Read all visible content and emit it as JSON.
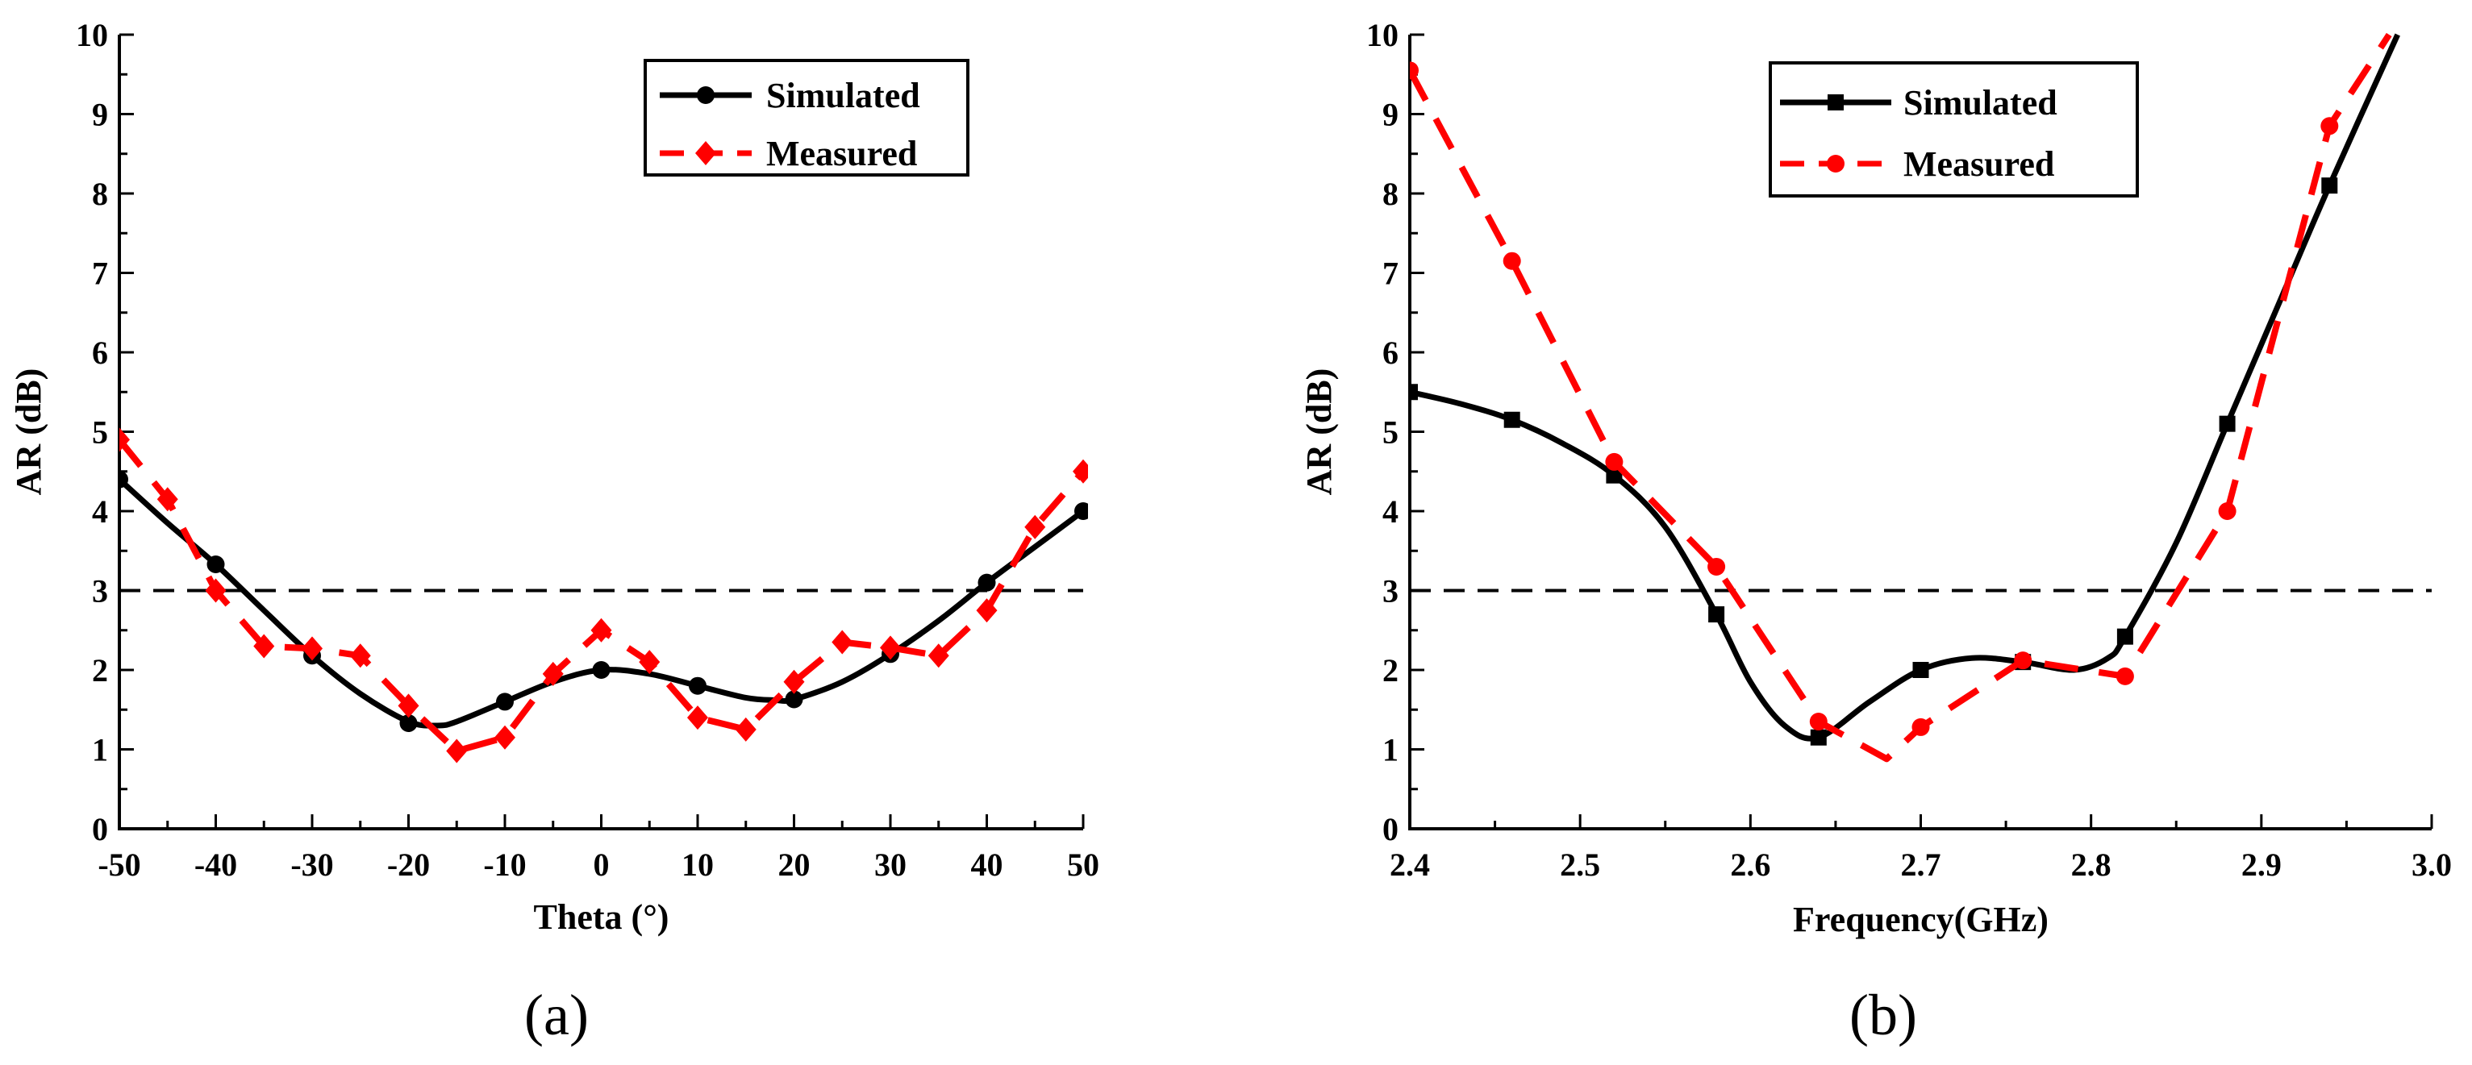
{
  "chart_data": [
    {
      "type": "line",
      "caption": "(a)",
      "xlabel": "Theta (°)",
      "ylabel": "AR (dB)",
      "xlim": [
        -50,
        50
      ],
      "ylim": [
        0,
        10
      ],
      "xticks": [
        -50,
        -40,
        -30,
        -20,
        -10,
        0,
        10,
        20,
        30,
        40,
        50
      ],
      "xtick_labels": [
        "-50",
        "-40",
        "-30",
        "-20",
        "-10",
        "0",
        "10",
        "20",
        "30",
        "40",
        "50"
      ],
      "yticks": [
        0,
        1,
        2,
        3,
        4,
        5,
        6,
        7,
        8,
        9,
        10
      ],
      "ytick_labels": [
        "0",
        "1",
        "2",
        "3",
        "4",
        "5",
        "6",
        "7",
        "8",
        "9",
        "10"
      ],
      "reference_line": 3,
      "legend_position": "top-right",
      "series": [
        {
          "name": "Simulated",
          "color": "#000000",
          "style": "solid",
          "marker": "circle",
          "x": [
            -50,
            -40,
            -30,
            -20,
            -10,
            0,
            10,
            20,
            30,
            40,
            50
          ],
          "values": [
            4.4,
            3.33,
            2.18,
            1.33,
            1.6,
            2.0,
            1.8,
            1.63,
            2.2,
            3.1,
            4.0
          ],
          "curve_x": [
            -50,
            -45,
            -40,
            -35,
            -30,
            -25,
            -20,
            -17,
            -15,
            -10,
            -5,
            0,
            5,
            10,
            15,
            18,
            20,
            25,
            30,
            35,
            40,
            45,
            50
          ],
          "curve_y": [
            4.4,
            3.85,
            3.33,
            2.75,
            2.18,
            1.7,
            1.35,
            1.3,
            1.35,
            1.6,
            1.85,
            2.0,
            1.95,
            1.8,
            1.65,
            1.62,
            1.63,
            1.85,
            2.2,
            2.62,
            3.1,
            3.55,
            4.0
          ]
        },
        {
          "name": "Measured",
          "color": "#ff0000",
          "style": "dashed",
          "marker": "diamond",
          "x": [
            -50,
            -45,
            -40,
            -35,
            -30,
            -25,
            -20,
            -15,
            -10,
            -5,
            0,
            5,
            10,
            15,
            20,
            25,
            30,
            35,
            40,
            45,
            50
          ],
          "values": [
            4.9,
            4.15,
            3.0,
            2.3,
            2.27,
            2.18,
            1.55,
            0.98,
            1.15,
            1.95,
            2.5,
            2.1,
            1.4,
            1.25,
            1.85,
            2.35,
            2.28,
            2.18,
            2.75,
            3.8,
            4.5
          ]
        }
      ]
    },
    {
      "type": "line",
      "caption": "(b)",
      "xlabel": "Frequency(GHz)",
      "ylabel": "AR (dB)",
      "xlim": [
        2.4,
        3.0
      ],
      "ylim": [
        0,
        10
      ],
      "xticks": [
        2.4,
        2.5,
        2.6,
        2.7,
        2.8,
        2.9,
        3.0
      ],
      "xtick_labels": [
        "2.4",
        "2.5",
        "2.6",
        "2.7",
        "2.8",
        "2.9",
        "3.0"
      ],
      "yticks": [
        0,
        1,
        2,
        3,
        4,
        5,
        6,
        7,
        8,
        9,
        10
      ],
      "ytick_labels": [
        "0",
        "1",
        "2",
        "3",
        "4",
        "5",
        "6",
        "7",
        "8",
        "9",
        "10"
      ],
      "reference_line": 3,
      "legend_position": "top-right",
      "series": [
        {
          "name": "Simulated",
          "color": "#000000",
          "style": "solid",
          "marker": "square",
          "x": [
            2.4,
            2.46,
            2.52,
            2.58,
            2.64,
            2.7,
            2.76,
            2.82,
            2.88,
            2.94
          ],
          "values": [
            5.5,
            5.15,
            4.45,
            2.7,
            1.15,
            2.0,
            2.1,
            2.42,
            5.1,
            8.1
          ],
          "curve_x": [
            2.4,
            2.43,
            2.46,
            2.49,
            2.52,
            2.55,
            2.58,
            2.6,
            2.62,
            2.64,
            2.67,
            2.7,
            2.73,
            2.76,
            2.79,
            2.81,
            2.82,
            2.85,
            2.88,
            2.91,
            2.94,
            2.98
          ],
          "curve_y": [
            5.5,
            5.35,
            5.15,
            4.85,
            4.45,
            3.8,
            2.7,
            1.85,
            1.3,
            1.15,
            1.6,
            2.0,
            2.15,
            2.1,
            2.0,
            2.15,
            2.42,
            3.6,
            5.1,
            6.6,
            8.1,
            10.0
          ]
        },
        {
          "name": "Measured",
          "color": "#ff0000",
          "style": "dashed",
          "marker": "circle",
          "x": [
            2.4,
            2.46,
            2.52,
            2.58,
            2.64,
            2.7,
            2.76,
            2.82,
            2.88,
            2.94
          ],
          "values": [
            9.55,
            7.15,
            4.62,
            3.3,
            1.35,
            1.28,
            2.12,
            1.92,
            4.0,
            8.85
          ],
          "curve_x": [
            2.4,
            2.46,
            2.52,
            2.58,
            2.64,
            2.68,
            2.7,
            2.76,
            2.82,
            2.88,
            2.94,
            2.975
          ],
          "curve_y": [
            9.55,
            7.15,
            4.62,
            3.3,
            1.35,
            0.88,
            1.28,
            2.12,
            1.92,
            4.0,
            8.85,
            10.0
          ]
        }
      ]
    }
  ]
}
